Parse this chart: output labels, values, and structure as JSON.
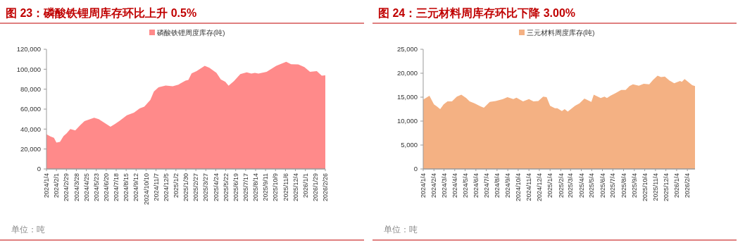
{
  "chart_data": [
    {
      "type": "area",
      "title": "图 23：磷酸铁锂周库存环比上升 0.5%",
      "annotations": [
        "单位：吨"
      ],
      "legend": "top right",
      "x": [
        "2024-01-04",
        "2024-01-15",
        "2024-01-25",
        "2024-02-01",
        "2024-02-11",
        "2024-02-21",
        "2024-03-01",
        "2024-03-11",
        "2024-03-25",
        "2024-04-07",
        "2024-04-20",
        "2024-05-17",
        "2024-05-30",
        "2024-07-02",
        "2024-07-15",
        "2024-07-28",
        "2024-08-17",
        "2024-09-06",
        "2024-09-22",
        "2024-10-05",
        "2024-10-22",
        "2024-11-01",
        "2024-11-14",
        "2024-12-04",
        "2024-12-24",
        "2025-01-09",
        "2025-01-29",
        "2025-02-06",
        "2025-02-15",
        "2025-03-01",
        "2025-03-24",
        "2025-04-06",
        "2025-04-26",
        "2025-05-08",
        "2025-05-21",
        "2025-05-30",
        "2025-06-14",
        "2025-07-02",
        "2025-07-20",
        "2025-08-02",
        "2025-08-12",
        "2025-08-22",
        "2025-09-14",
        "2025-10-11",
        "2025-11-08",
        "2025-11-22",
        "2025-12-12",
        "2025-12-29",
        "2026-01-14",
        "2026-02-02",
        "2026-02-16",
        "2026-02-26"
      ],
      "series": [
        {
          "name": "磷酸铁锂周度库存(吨)",
          "color": "#ff8a8a",
          "values": [
            34700,
            32600,
            31200,
            26500,
            27200,
            33000,
            35900,
            40100,
            38700,
            43600,
            48000,
            51300,
            49900,
            42400,
            45200,
            48300,
            53900,
            56500,
            60700,
            62400,
            69100,
            77600,
            81800,
            83700,
            83000,
            84600,
            88600,
            89300,
            95900,
            98200,
            103400,
            101500,
            96300,
            89800,
            87400,
            83400,
            88100,
            95200,
            96800,
            95600,
            96300,
            95600,
            97500,
            103400,
            107400,
            105000,
            104800,
            102200,
            97500,
            98200,
            93500,
            93800
          ]
        }
      ],
      "xlim": [
        "2024-01-04",
        "2026-02-26"
      ],
      "xticks": [
        {
          "value": "2024-01-04",
          "label": "2024/1/4"
        },
        {
          "value": "2024-02-01",
          "label": "2024/2/1"
        },
        {
          "value": "2024-02-29",
          "label": "2024/2/29"
        },
        {
          "value": "2024-03-28",
          "label": "2024/3/28"
        },
        {
          "value": "2024-04-25",
          "label": "2024/4/25"
        },
        {
          "value": "2024-05-23",
          "label": "2024/5/23"
        },
        {
          "value": "2024-06-20",
          "label": "2024/6/20"
        },
        {
          "value": "2024-07-18",
          "label": "2024/7/18"
        },
        {
          "value": "2024-08-15",
          "label": "2024/8/15"
        },
        {
          "value": "2024-09-12",
          "label": "2024/9/12"
        },
        {
          "value": "2024-10-10",
          "label": "2024/10/10"
        },
        {
          "value": "2024-11-07",
          "label": "2024/11/7"
        },
        {
          "value": "2024-12-05",
          "label": "2024/12/5"
        },
        {
          "value": "2025-01-02",
          "label": "2025/1/2"
        },
        {
          "value": "2025-01-30",
          "label": "2025/1/30"
        },
        {
          "value": "2025-02-27",
          "label": "2025/2/27"
        },
        {
          "value": "2025-03-27",
          "label": "2025/3/27"
        },
        {
          "value": "2025-04-24",
          "label": "2025/4/24"
        },
        {
          "value": "2025-05-22",
          "label": "2025/5/22"
        },
        {
          "value": "2025-06-19",
          "label": "2025/6/19"
        },
        {
          "value": "2025-07-17",
          "label": "2025/7/17"
        },
        {
          "value": "2025-08-14",
          "label": "2025/8/14"
        },
        {
          "value": "2025-09-11",
          "label": "2025/9/11"
        },
        {
          "value": "2025-10-09",
          "label": "2025/10/9"
        },
        {
          "value": "2025-11-06",
          "label": "2025/11/6"
        },
        {
          "value": "2025-12-04",
          "label": "2025/12/4"
        },
        {
          "value": "2026-01-01",
          "label": "2026/1/1"
        },
        {
          "value": "2026-01-29",
          "label": "2026/1/29"
        },
        {
          "value": "2026-02-26",
          "label": "2026/2/26"
        }
      ],
      "ylim": [
        0,
        120000
      ],
      "yticks": [
        0,
        {
          "value": 20000,
          "label": "20,000"
        },
        {
          "value": 40000,
          "label": "40,000"
        },
        {
          "value": 60000,
          "label": "60,000"
        },
        {
          "value": 80000,
          "label": "80,000"
        },
        {
          "value": 100000,
          "label": "100,000"
        },
        {
          "value": 120000,
          "label": "120,000"
        }
      ]
    },
    {
      "type": "area",
      "title": "图 24：三元材料周库存环比下降 3.00%",
      "annotations": [
        "单位：吨"
      ],
      "legend": "top right",
      "x": [
        "2024-01-04",
        "2024-01-22",
        "2024-02-04",
        "2024-02-12",
        "2024-02-22",
        "2024-03-03",
        "2024-03-14",
        "2024-03-27",
        "2024-04-10",
        "2024-04-23",
        "2024-05-07",
        "2024-05-17",
        "2024-05-31",
        "2024-06-17",
        "2024-06-27",
        "2024-07-14",
        "2024-07-31",
        "2024-08-21",
        "2024-09-03",
        "2024-09-20",
        "2024-09-29",
        "2024-10-18",
        "2024-11-04",
        "2024-11-17",
        "2024-12-01",
        "2024-12-15",
        "2024-12-25",
        "2025-01-04",
        "2025-01-18",
        "2025-01-25",
        "2025-02-07",
        "2025-02-15",
        "2025-02-24",
        "2025-03-17",
        "2025-03-30",
        "2025-04-13",
        "2025-05-03",
        "2025-05-10",
        "2025-05-30",
        "2025-06-10",
        "2025-06-17",
        "2025-06-27",
        "2025-07-11",
        "2025-07-28",
        "2025-08-10",
        "2025-08-21",
        "2025-08-31",
        "2025-09-17",
        "2025-10-01",
        "2025-10-17",
        "2025-10-28",
        "2025-11-10",
        "2025-11-20",
        "2025-12-01",
        "2025-12-14",
        "2025-12-28",
        "2026-01-14",
        "2026-01-19",
        "2026-01-27",
        "2026-02-18",
        "2026-02-26"
      ],
      "series": [
        {
          "name": "三元材料周度库存(吨)",
          "color": "#f4b183",
          "values": [
            14500,
            15300,
            13500,
            13100,
            12500,
            13500,
            14100,
            14100,
            15100,
            15500,
            14800,
            14100,
            13700,
            13100,
            12800,
            14000,
            14200,
            14600,
            15000,
            14600,
            14900,
            14100,
            14600,
            14100,
            14200,
            15100,
            15000,
            13200,
            12700,
            12700,
            12100,
            12500,
            12000,
            13200,
            13700,
            14700,
            14000,
            15500,
            14800,
            15100,
            14800,
            15300,
            15800,
            16500,
            16500,
            17300,
            17700,
            17400,
            17800,
            17700,
            18600,
            19500,
            19200,
            19300,
            18500,
            17900,
            18400,
            18200,
            18800,
            17500,
            17300
          ]
        }
      ],
      "xlim": [
        "2024-01-04",
        "2026-02-26"
      ],
      "xticks": [
        {
          "value": "2024-01-04",
          "label": "2024/1/4"
        },
        {
          "value": "2024-02-04",
          "label": "2024/2/4"
        },
        {
          "value": "2024-03-04",
          "label": "2024/3/4"
        },
        {
          "value": "2024-04-04",
          "label": "2024/4/4"
        },
        {
          "value": "2024-05-04",
          "label": "2024/5/4"
        },
        {
          "value": "2024-06-04",
          "label": "2024/6/4"
        },
        {
          "value": "2024-07-04",
          "label": "2024/7/4"
        },
        {
          "value": "2024-08-04",
          "label": "2024/8/4"
        },
        {
          "value": "2024-09-04",
          "label": "2024/9/4"
        },
        {
          "value": "2024-10-04",
          "label": "2024/10/4"
        },
        {
          "value": "2024-11-04",
          "label": "2024/11/4"
        },
        {
          "value": "2024-12-04",
          "label": "2024/12/4"
        },
        {
          "value": "2025-01-04",
          "label": "2025/1/4"
        },
        {
          "value": "2025-02-04",
          "label": "2025/2/4"
        },
        {
          "value": "2025-03-04",
          "label": "2025/3/4"
        },
        {
          "value": "2025-04-04",
          "label": "2025/4/4"
        },
        {
          "value": "2025-05-04",
          "label": "2025/5/4"
        },
        {
          "value": "2025-06-04",
          "label": "2025/6/4"
        },
        {
          "value": "2025-07-04",
          "label": "2025/7/4"
        },
        {
          "value": "2025-08-04",
          "label": "2025/8/4"
        },
        {
          "value": "2025-09-04",
          "label": "2025/9/4"
        },
        {
          "value": "2025-10-04",
          "label": "2025/10/4"
        },
        {
          "value": "2025-11-04",
          "label": "2025/11/4"
        },
        {
          "value": "2025-12-04",
          "label": "2025/12/4"
        },
        {
          "value": "2026-01-04",
          "label": "2026/1/4"
        },
        {
          "value": "2026-02-04",
          "label": "2026/2/4"
        }
      ],
      "ylim": [
        0,
        25000
      ],
      "yticks": [
        0,
        {
          "value": 5000,
          "label": "5,000"
        },
        {
          "value": 10000,
          "label": "10,000"
        },
        {
          "value": 15000,
          "label": "15,000"
        },
        {
          "value": 20000,
          "label": "20,000"
        },
        {
          "value": 25000,
          "label": "25,000"
        }
      ]
    }
  ]
}
